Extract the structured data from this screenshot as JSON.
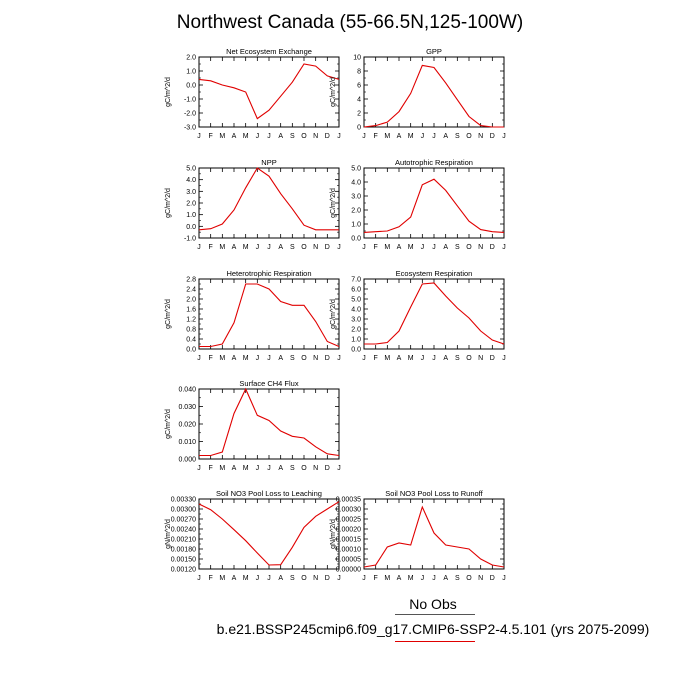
{
  "page_title": "Northwest Canada (55-66.5N,125-100W)",
  "months": [
    "J",
    "F",
    "M",
    "A",
    "M",
    "J",
    "J",
    "A",
    "S",
    "O",
    "N",
    "D",
    "J"
  ],
  "footer": {
    "obs_label": "No Obs",
    "case_label": "b.e21.BSSP245cmip6.f09_g17.CMIP6-SSP2-4.5.101 (yrs 2075-2099)"
  },
  "colors": {
    "series": "#e00000",
    "axis": "#000000"
  },
  "chart_data": [
    {
      "type": "line",
      "title": "Net Ecosystem Exchange",
      "ylabel": "gC/m^2/d",
      "ylim": [
        -3,
        2
      ],
      "yticks": [
        2,
        1,
        0,
        -1,
        -2,
        -3
      ],
      "yticklabels": [
        "2.0",
        "1.0",
        "0.0",
        "-1.0",
        "-2.0",
        "-3.0"
      ],
      "values": [
        0.4,
        0.3,
        0.0,
        -0.2,
        -0.5,
        -2.4,
        -1.8,
        -0.8,
        0.2,
        1.5,
        1.35,
        0.65,
        0.4
      ]
    },
    {
      "type": "line",
      "title": "GPP",
      "ylabel": "gC/m^2/d",
      "ylim": [
        0,
        10
      ],
      "yticks": [
        10,
        8,
        6,
        4,
        2,
        0
      ],
      "yticklabels": [
        "10",
        "8",
        "6",
        "4",
        "2",
        "0"
      ],
      "values": [
        0.0,
        0.2,
        0.7,
        2.2,
        4.8,
        8.8,
        8.5,
        6.3,
        3.9,
        1.5,
        0.2,
        0.0,
        0.0
      ]
    },
    {
      "type": "line",
      "title": "NPP",
      "ylabel": "gC/m^2/d",
      "ylim": [
        -1,
        5
      ],
      "yticks": [
        5,
        4,
        3,
        2,
        1,
        0,
        -1
      ],
      "yticklabels": [
        "5.0",
        "4.0",
        "3.0",
        "2.0",
        "1.0",
        "0.0",
        "-1.0"
      ],
      "values": [
        -0.3,
        -0.2,
        0.2,
        1.4,
        3.3,
        5.0,
        4.3,
        2.8,
        1.5,
        0.1,
        -0.3,
        -0.3,
        -0.3
      ]
    },
    {
      "type": "line",
      "title": "Autotrophic Respiration",
      "ylabel": "gC/m^2/d",
      "ylim": [
        0,
        5
      ],
      "yticks": [
        5,
        4,
        3,
        2,
        1,
        0
      ],
      "yticklabels": [
        "5.0",
        "4.0",
        "3.0",
        "2.0",
        "1.0",
        "0.0"
      ],
      "values": [
        0.4,
        0.45,
        0.5,
        0.8,
        1.5,
        3.8,
        4.2,
        3.4,
        2.3,
        1.2,
        0.6,
        0.45,
        0.4
      ]
    },
    {
      "type": "line",
      "title": "Heterotrophic Respiration",
      "ylabel": "gC/m^2/d",
      "ylim": [
        0,
        2.8
      ],
      "yticks": [
        2.8,
        2.4,
        2.0,
        1.6,
        1.2,
        0.8,
        0.4,
        0.0
      ],
      "yticklabels": [
        "2.8",
        "2.4",
        "2.0",
        "1.6",
        "1.2",
        "0.8",
        "0.4",
        "0.0"
      ],
      "values": [
        0.1,
        0.1,
        0.2,
        1.05,
        2.6,
        2.6,
        2.4,
        1.9,
        1.75,
        1.75,
        1.1,
        0.3,
        0.1
      ]
    },
    {
      "type": "line",
      "title": "Ecosystem Respiration",
      "ylabel": "gC/m^2/d",
      "ylim": [
        0,
        7
      ],
      "yticks": [
        7,
        6,
        5,
        4,
        3,
        2,
        1,
        0
      ],
      "yticklabels": [
        "7.0",
        "6.0",
        "5.0",
        "4.0",
        "3.0",
        "2.0",
        "1.0",
        "0.0"
      ],
      "values": [
        0.5,
        0.5,
        0.65,
        1.8,
        4.2,
        6.5,
        6.6,
        5.3,
        4.1,
        3.1,
        1.8,
        0.9,
        0.5
      ]
    },
    {
      "type": "line",
      "title": "Surface CH4 Flux",
      "ylabel": "gC/m^2/d",
      "ylim": [
        0,
        0.04
      ],
      "yticks": [
        0.04,
        0.03,
        0.02,
        0.01,
        0.0
      ],
      "yticklabels": [
        "0.040",
        "0.030",
        "0.020",
        "0.010",
        "0.000"
      ],
      "values": [
        0.002,
        0.002,
        0.004,
        0.026,
        0.04,
        0.025,
        0.022,
        0.016,
        0.013,
        0.012,
        0.007,
        0.003,
        0.002
      ]
    },
    {
      "type": "line",
      "title": "Soil NO3 Pool Loss to Leaching",
      "ylabel": "gN/m^2/d",
      "ylim": [
        0.0012,
        0.0033
      ],
      "yticks": [
        0.0033,
        0.003,
        0.0027,
        0.0024,
        0.0021,
        0.0018,
        0.0015,
        0.0012
      ],
      "yticklabels": [
        "0.00330",
        "0.00300",
        "0.00270",
        "0.00240",
        "0.00210",
        "0.00180",
        "0.00150",
        "0.00120"
      ],
      "values": [
        0.00315,
        0.00298,
        0.0027,
        0.00238,
        0.00205,
        0.00168,
        0.00132,
        0.00133,
        0.00185,
        0.00245,
        0.00278,
        0.003,
        0.00322
      ]
    },
    {
      "type": "line",
      "title": "Soil NO3 Pool Loss to Runoff",
      "ylabel": "gN/m^2/d",
      "ylim": [
        0,
        0.00035
      ],
      "yticks": [
        0.00035,
        0.0003,
        0.00025,
        0.0002,
        0.00015,
        0.0001,
        5e-05,
        0
      ],
      "yticklabels": [
        "0.00035",
        "0.00030",
        "0.00025",
        "0.00020",
        "0.00015",
        "0.00010",
        "0.00005",
        "0.00000"
      ],
      "values": [
        1e-05,
        2e-05,
        0.00011,
        0.00013,
        0.00012,
        0.00031,
        0.00018,
        0.00012,
        0.00011,
        0.0001,
        5e-05,
        2e-05,
        1e-05
      ]
    }
  ]
}
